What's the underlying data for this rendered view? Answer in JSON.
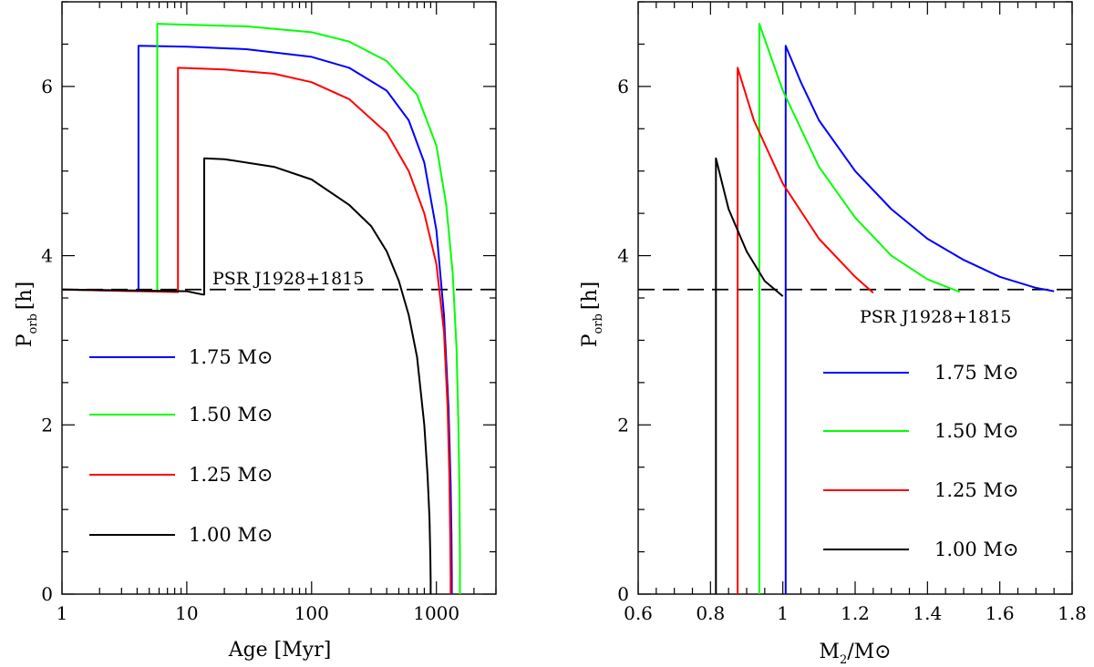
{
  "chart_data": [
    {
      "type": "line",
      "xscale": "log",
      "xlabel": "Age [Myr]",
      "ylabel_main": "P",
      "ylabel_sub": "orb",
      "ylabel_unit": "[h]",
      "xlim": [
        1,
        3000
      ],
      "ylim": [
        0,
        7
      ],
      "xticks": [
        1,
        10,
        100,
        1000
      ],
      "xtick_labels": [
        "1",
        "10",
        "100",
        "1000"
      ],
      "yticks": [
        0,
        2,
        4,
        6
      ],
      "ytick_labels": [
        "0",
        "2",
        "4",
        "6"
      ],
      "reference_line": {
        "y": 3.6,
        "label": "PSR J1928+1815"
      },
      "legend": [
        "1.75 M⊙",
        "1.50 M⊙",
        "1.25 M⊙",
        "1.00 M⊙"
      ],
      "series": [
        {
          "name": "1.75 M⊙",
          "color": "#0000ff",
          "x": [
            1,
            4.0,
            4.1,
            4.1,
            10,
            30,
            100,
            200,
            400,
            600,
            800,
            1000,
            1150,
            1250,
            1300,
            1320,
            1330,
            1330
          ],
          "y": [
            3.6,
            3.58,
            3.58,
            6.48,
            6.47,
            6.44,
            6.35,
            6.22,
            5.95,
            5.6,
            5.1,
            4.3,
            3.3,
            2.2,
            1.3,
            0.7,
            0.2,
            0.0
          ]
        },
        {
          "name": "1.50 M⊙",
          "color": "#00ff00",
          "x": [
            1,
            5.6,
            5.8,
            5.8,
            10,
            30,
            100,
            200,
            400,
            700,
            1000,
            1200,
            1350,
            1450,
            1500,
            1530,
            1545,
            1545
          ],
          "y": [
            3.6,
            3.58,
            3.58,
            6.74,
            6.73,
            6.71,
            6.64,
            6.53,
            6.3,
            5.9,
            5.3,
            4.6,
            3.8,
            2.9,
            2.0,
            1.2,
            0.4,
            0.0
          ]
        },
        {
          "name": "1.25 M⊙",
          "color": "#ff0000",
          "x": [
            1,
            8.3,
            8.5,
            8.5,
            20,
            50,
            100,
            200,
            400,
            600,
            800,
            1000,
            1150,
            1230,
            1270,
            1290,
            1300,
            1300
          ],
          "y": [
            3.6,
            3.57,
            3.57,
            6.22,
            6.2,
            6.15,
            6.05,
            5.85,
            5.45,
            5.0,
            4.5,
            3.9,
            3.1,
            2.2,
            1.4,
            0.7,
            0.2,
            0.0
          ]
        },
        {
          "name": "1.00 M⊙",
          "color": "#000000",
          "x": [
            1,
            10,
            13.5,
            13.8,
            13.8,
            20,
            50,
            100,
            200,
            300,
            400,
            500,
            600,
            700,
            800,
            850,
            880,
            895,
            900,
            900
          ],
          "y": [
            3.6,
            3.58,
            3.54,
            3.54,
            5.15,
            5.14,
            5.05,
            4.9,
            4.6,
            4.35,
            4.05,
            3.7,
            3.3,
            2.8,
            2.0,
            1.4,
            0.9,
            0.4,
            0.15,
            0.0
          ]
        }
      ]
    },
    {
      "type": "line",
      "xscale": "linear",
      "xlabel_main": "M",
      "xlabel_sub": "2",
      "xlabel_rest": "/M⊙",
      "ylabel_main": "P",
      "ylabel_sub": "orb",
      "ylabel_unit": "[h]",
      "xlim": [
        0.6,
        1.8
      ],
      "ylim": [
        0,
        7
      ],
      "xticks": [
        0.6,
        0.8,
        1.0,
        1.2,
        1.4,
        1.6,
        1.8
      ],
      "xtick_labels": [
        "0.6",
        "0.8",
        "1",
        "1.2",
        "1.4",
        "1.6",
        "1.8"
      ],
      "yticks": [
        0,
        2,
        4,
        6
      ],
      "ytick_labels": [
        "0",
        "2",
        "4",
        "6"
      ],
      "reference_line": {
        "y": 3.6,
        "label": "PSR J1928+1815"
      },
      "legend": [
        "1.75 M⊙",
        "1.50 M⊙",
        "1.25 M⊙",
        "1.00 M⊙"
      ],
      "series": [
        {
          "name": "1.75 M⊙",
          "color": "#0000ff",
          "x": [
            1.008,
            1.008,
            1.05,
            1.1,
            1.2,
            1.3,
            1.4,
            1.5,
            1.6,
            1.7,
            1.75
          ],
          "y": [
            0,
            6.48,
            6.05,
            5.6,
            5.0,
            4.55,
            4.2,
            3.95,
            3.75,
            3.62,
            3.58
          ]
        },
        {
          "name": "1.50 M⊙",
          "color": "#00ff00",
          "x": [
            0.935,
            0.935,
            1.0,
            1.1,
            1.2,
            1.3,
            1.4,
            1.49
          ],
          "y": [
            0,
            6.74,
            5.95,
            5.05,
            4.45,
            4.0,
            3.72,
            3.57
          ]
        },
        {
          "name": "1.25 M⊙",
          "color": "#ff0000",
          "x": [
            0.875,
            0.875,
            0.92,
            1.0,
            1.1,
            1.2,
            1.25
          ],
          "y": [
            0,
            6.22,
            5.6,
            4.85,
            4.2,
            3.75,
            3.56
          ]
        },
        {
          "name": "1.00 M⊙",
          "color": "#000000",
          "x": [
            0.815,
            0.815,
            0.85,
            0.9,
            0.95,
            1.0,
            1.0
          ],
          "y": [
            0,
            5.15,
            4.55,
            4.05,
            3.7,
            3.52,
            3.52
          ]
        }
      ]
    }
  ]
}
